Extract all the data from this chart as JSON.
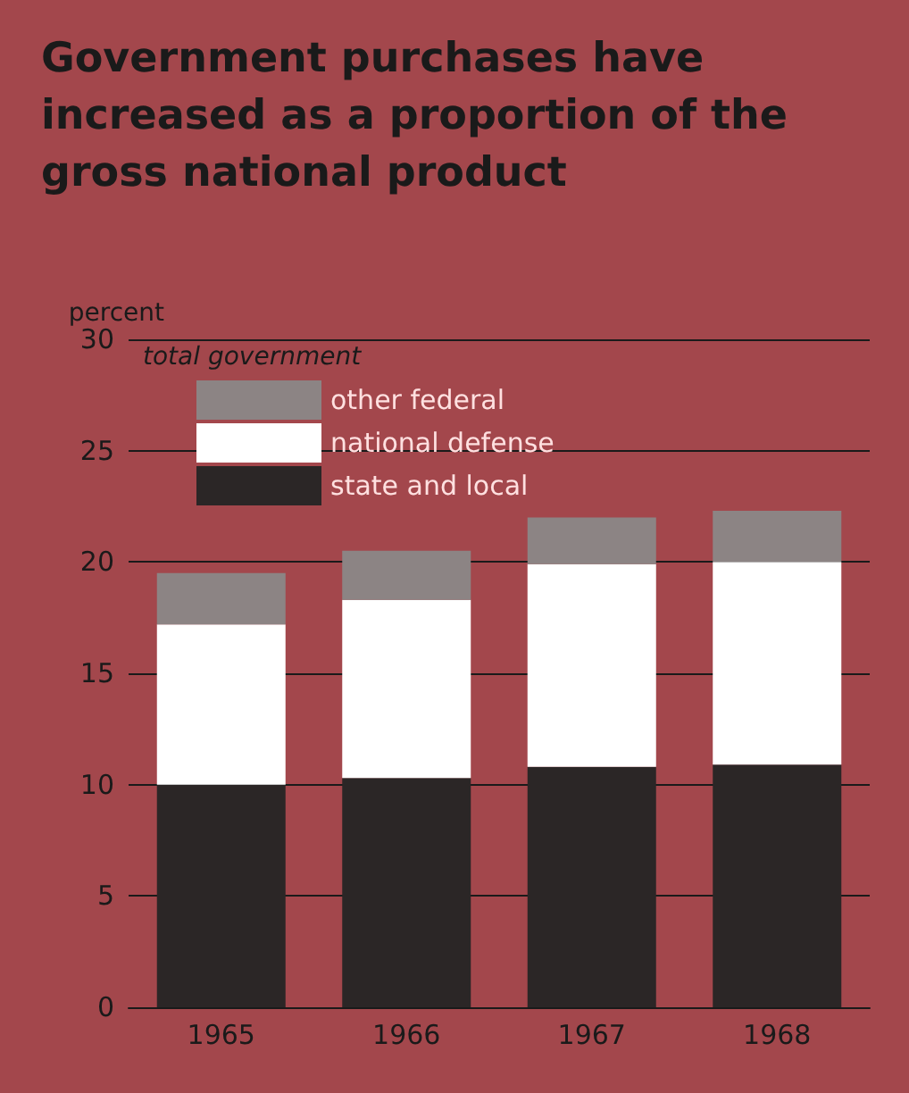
{
  "chart_data": {
    "type": "bar",
    "title": "Government purchases have increased as a proportion of the gross national product",
    "ylabel": "percent",
    "annotations": [
      "total government"
    ],
    "categories": [
      "1965",
      "1966",
      "1967",
      "1968"
    ],
    "stacked": true,
    "series": [
      {
        "name": "state and local",
        "color": "#2b2626",
        "values": [
          10.0,
          10.3,
          10.8,
          10.9
        ]
      },
      {
        "name": "national defense",
        "color": "#ffffff",
        "values": [
          7.2,
          8.0,
          9.1,
          9.1
        ]
      },
      {
        "name": "other federal",
        "color": "#8c8484",
        "values": [
          2.3,
          2.2,
          2.1,
          2.3
        ]
      }
    ],
    "ylim": [
      0,
      30
    ],
    "yticks": [
      0,
      5,
      10,
      15,
      20,
      25,
      30
    ],
    "grid": "y",
    "legend": "top left"
  }
}
